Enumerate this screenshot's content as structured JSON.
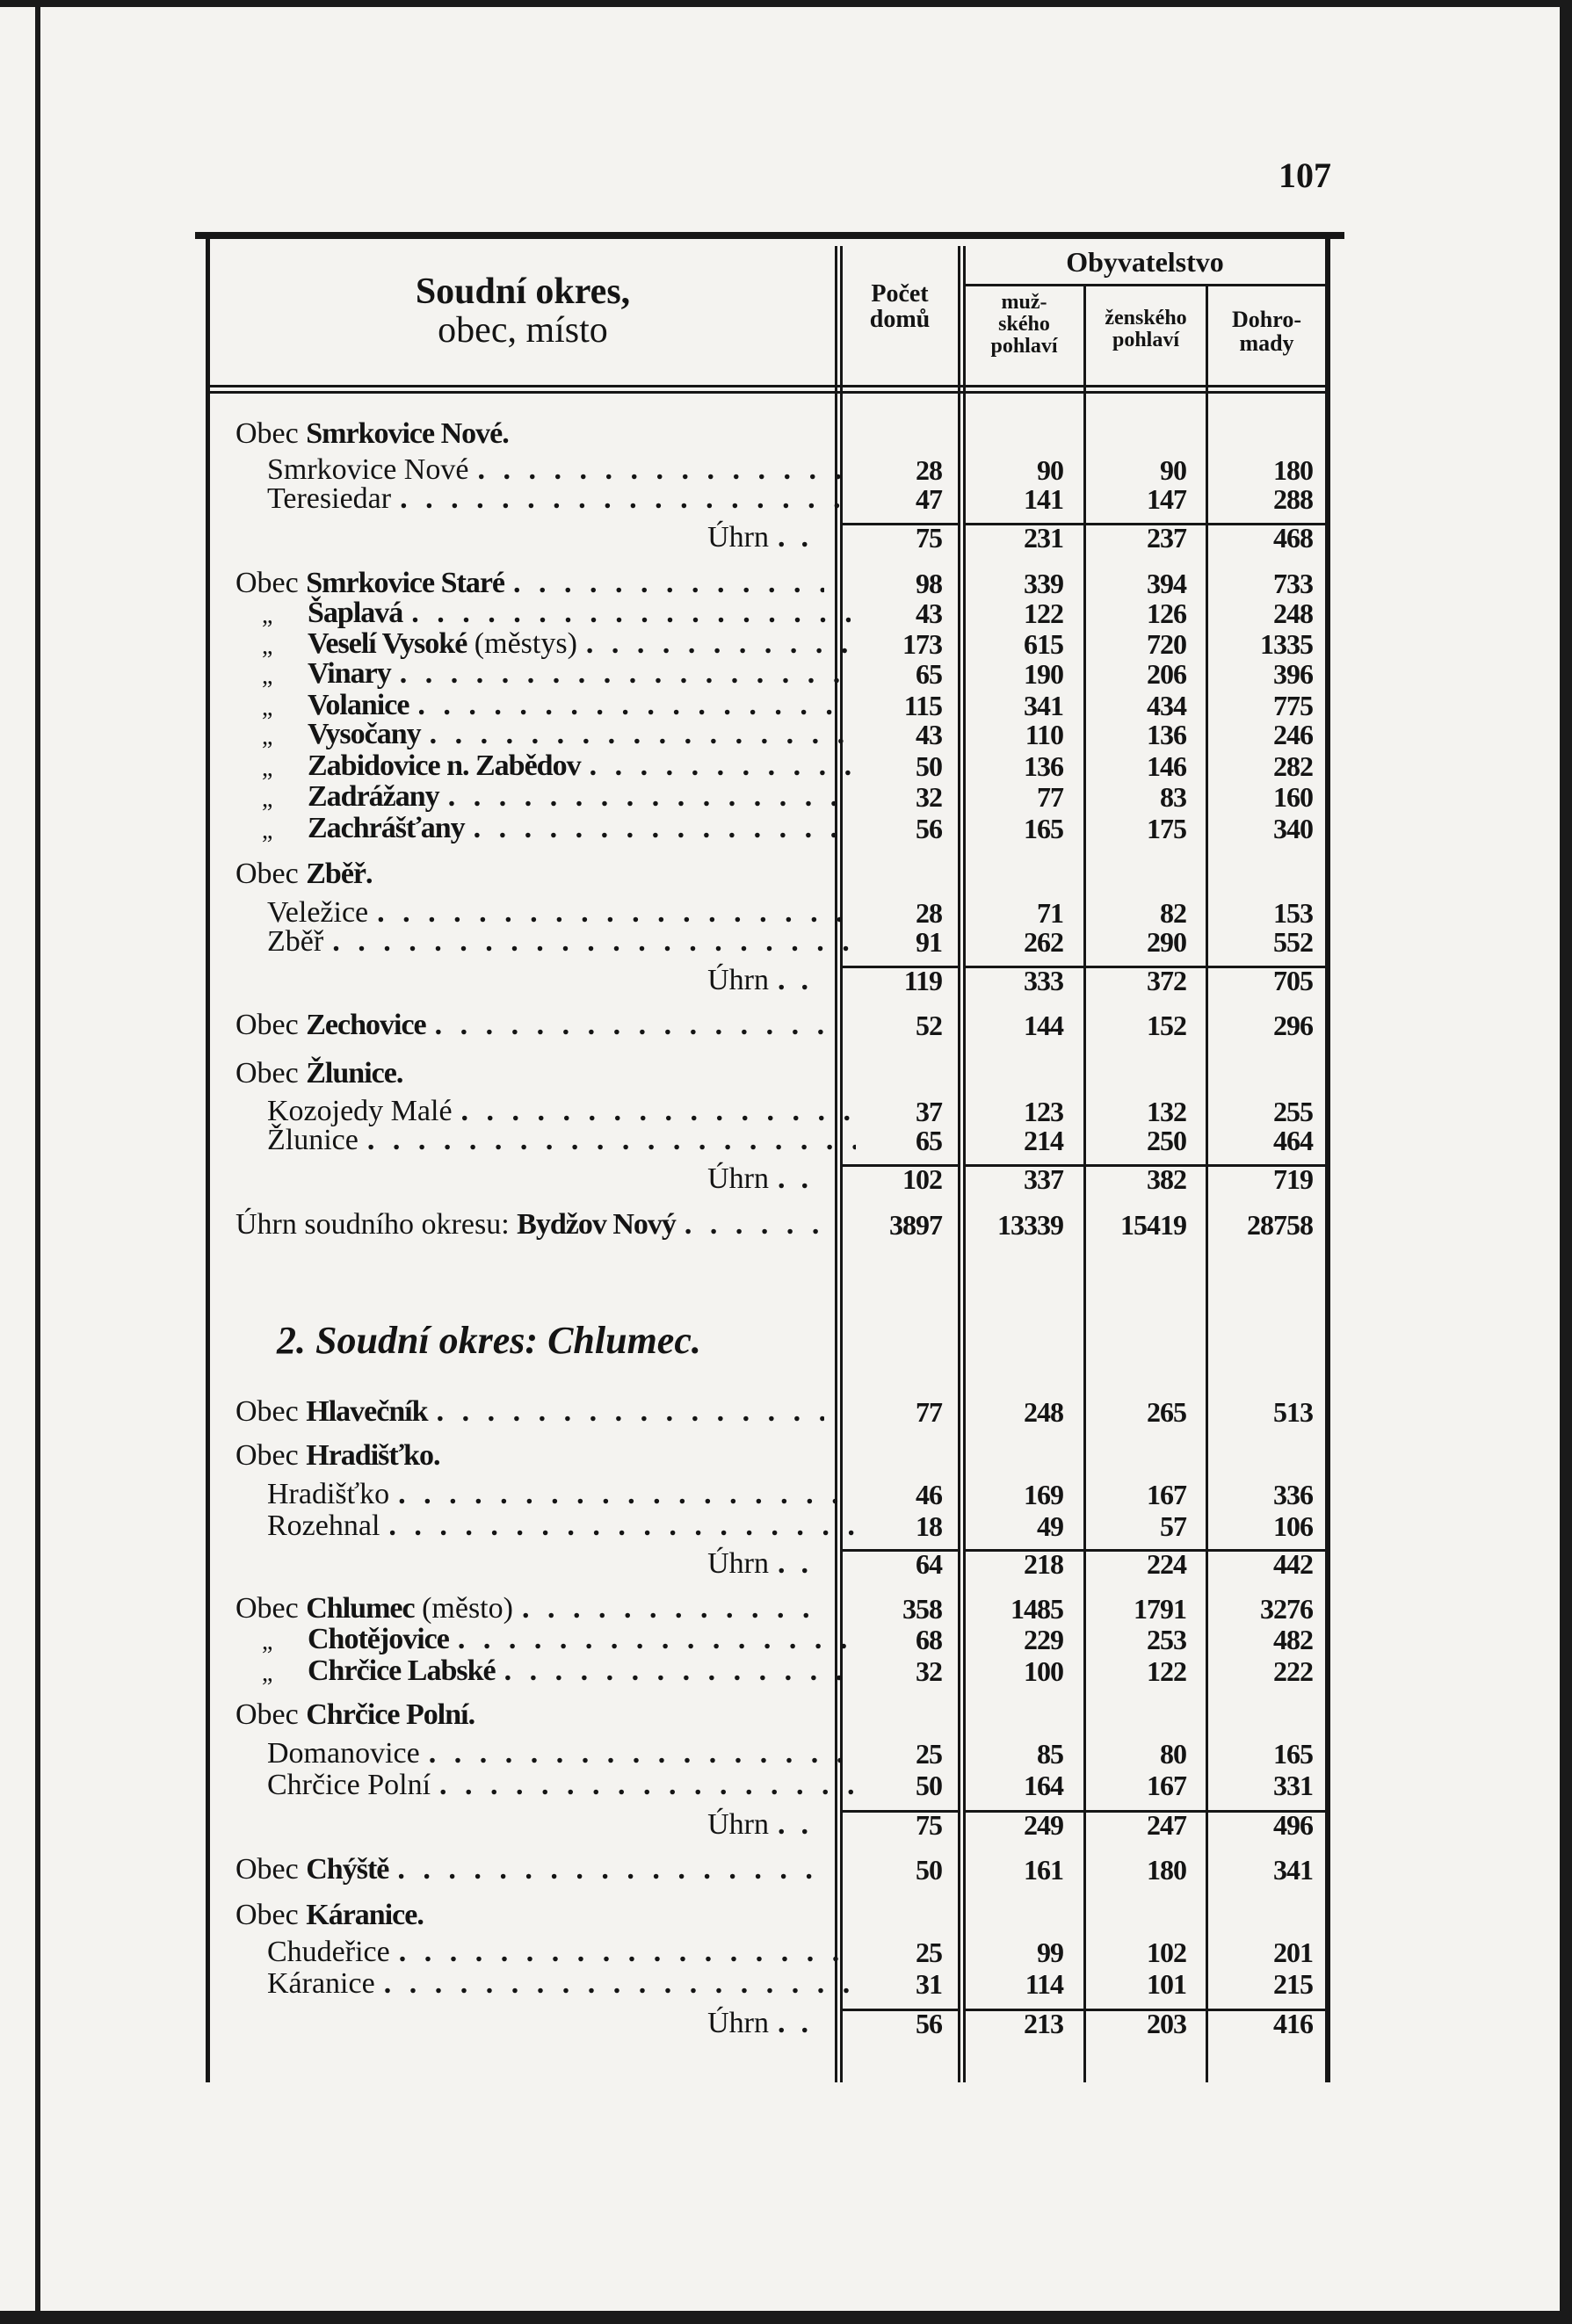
{
  "page_number": "107",
  "header": {
    "col_name_line1": "Soudní okres,",
    "col_name_line2": "obec, místo",
    "col_houses_line1": "Počet",
    "col_houses_line2": "domů",
    "group_population": "Obyvatelstvo",
    "col_male_line1": "muž-",
    "col_male_line2": "ského",
    "col_male_line3": "pohlaví",
    "col_female_line1": "ženského",
    "col_female_line2": "pohlaví",
    "col_total_line1": "Dohro-",
    "col_total_line2": "mady"
  },
  "section_heading": "2. Soudní okres: Chlumec.",
  "rows": [
    {
      "kind": "obec-header",
      "prefix": "Obec",
      "name": "Smrkovice Nové."
    },
    {
      "kind": "place",
      "name": "Smrkovice Nové",
      "values": [
        "28",
        "90",
        "90",
        "180"
      ]
    },
    {
      "kind": "place",
      "name": "Teresiedar",
      "values": [
        "47",
        "141",
        "147",
        "288"
      ]
    },
    {
      "kind": "total",
      "name": "Úhrn",
      "values": [
        "75",
        "231",
        "237",
        "468"
      ]
    },
    {
      "kind": "obec",
      "prefix": "Obec",
      "name": "Smrkovice Staré",
      "values": [
        "98",
        "339",
        "394",
        "733"
      ]
    },
    {
      "kind": "ditto",
      "prefix": "„",
      "name": "Šaplavá",
      "values": [
        "43",
        "122",
        "126",
        "248"
      ]
    },
    {
      "kind": "ditto",
      "prefix": "„",
      "name": "Veselí Vysoké",
      "suffix": "(městys)",
      "values": [
        "173",
        "615",
        "720",
        "1335"
      ]
    },
    {
      "kind": "ditto",
      "prefix": "„",
      "name": "Vinary",
      "values": [
        "65",
        "190",
        "206",
        "396"
      ]
    },
    {
      "kind": "ditto",
      "prefix": "„",
      "name": "Volanice",
      "values": [
        "115",
        "341",
        "434",
        "775"
      ]
    },
    {
      "kind": "ditto",
      "prefix": "„",
      "name": "Vysočany",
      "values": [
        "43",
        "110",
        "136",
        "246"
      ]
    },
    {
      "kind": "ditto",
      "prefix": "„",
      "name": "Zabidovice n. Zabědov",
      "values": [
        "50",
        "136",
        "146",
        "282"
      ]
    },
    {
      "kind": "ditto",
      "prefix": "„",
      "name": "Zadrážany",
      "values": [
        "32",
        "77",
        "83",
        "160"
      ]
    },
    {
      "kind": "ditto",
      "prefix": "„",
      "name": "Zachrášťany",
      "values": [
        "56",
        "165",
        "175",
        "340"
      ]
    },
    {
      "kind": "obec-header",
      "prefix": "Obec",
      "name": "Zběř."
    },
    {
      "kind": "place",
      "name": "Veležice",
      "values": [
        "28",
        "71",
        "82",
        "153"
      ]
    },
    {
      "kind": "place",
      "name": "Zběř",
      "values": [
        "91",
        "262",
        "290",
        "552"
      ]
    },
    {
      "kind": "total",
      "name": "Úhrn",
      "values": [
        "119",
        "333",
        "372",
        "705"
      ]
    },
    {
      "kind": "obec",
      "prefix": "Obec",
      "name": "Zechovice",
      "values": [
        "52",
        "144",
        "152",
        "296"
      ]
    },
    {
      "kind": "obec-header",
      "prefix": "Obec",
      "name": "Žlunice."
    },
    {
      "kind": "place",
      "name": "Kozojedy Malé",
      "values": [
        "37",
        "123",
        "132",
        "255"
      ]
    },
    {
      "kind": "place",
      "name": "Žlunice",
      "values": [
        "65",
        "214",
        "250",
        "464"
      ]
    },
    {
      "kind": "total",
      "name": "Úhrn",
      "values": [
        "102",
        "337",
        "382",
        "719"
      ]
    },
    {
      "kind": "district-total",
      "prefix": "Úhrn soudního okresu:",
      "name": "Bydžov Nový",
      "values": [
        "3897",
        "13339",
        "15419",
        "28758"
      ]
    },
    {
      "kind": "obec",
      "prefix": "Obec",
      "name": "Hlavečník",
      "values": [
        "77",
        "248",
        "265",
        "513"
      ]
    },
    {
      "kind": "obec-header",
      "prefix": "Obec",
      "name": "Hradišťko."
    },
    {
      "kind": "place",
      "name": "Hradišťko",
      "values": [
        "46",
        "169",
        "167",
        "336"
      ]
    },
    {
      "kind": "place",
      "name": "Rozehnal",
      "values": [
        "18",
        "49",
        "57",
        "106"
      ]
    },
    {
      "kind": "total",
      "name": "Úhrn",
      "values": [
        "64",
        "218",
        "224",
        "442"
      ]
    },
    {
      "kind": "obec",
      "prefix": "Obec",
      "name": "Chlumec",
      "suffix": "(město)",
      "values": [
        "358",
        "1485",
        "1791",
        "3276"
      ]
    },
    {
      "kind": "ditto",
      "prefix": "„",
      "name": "Chotějovice",
      "values": [
        "68",
        "229",
        "253",
        "482"
      ]
    },
    {
      "kind": "ditto",
      "prefix": "„",
      "name": "Chrčice Labské",
      "values": [
        "32",
        "100",
        "122",
        "222"
      ]
    },
    {
      "kind": "obec-header",
      "prefix": "Obec",
      "name": "Chrčice Polní."
    },
    {
      "kind": "place",
      "name": "Domanovice",
      "values": [
        "25",
        "85",
        "80",
        "165"
      ]
    },
    {
      "kind": "place",
      "name": "Chrčice Polní",
      "values": [
        "50",
        "164",
        "167",
        "331"
      ]
    },
    {
      "kind": "total",
      "name": "Úhrn",
      "values": [
        "75",
        "249",
        "247",
        "496"
      ]
    },
    {
      "kind": "obec",
      "prefix": "Obec",
      "name": "Chýště",
      "values": [
        "50",
        "161",
        "180",
        "341"
      ]
    },
    {
      "kind": "obec-header",
      "prefix": "Obec",
      "name": "Káranice."
    },
    {
      "kind": "place",
      "name": "Chudeřice",
      "values": [
        "25",
        "99",
        "102",
        "201"
      ]
    },
    {
      "kind": "place",
      "name": "Káranice",
      "values": [
        "31",
        "114",
        "101",
        "215"
      ]
    },
    {
      "kind": "total",
      "name": "Úhrn",
      "values": [
        "56",
        "213",
        "203",
        "416"
      ]
    }
  ]
}
